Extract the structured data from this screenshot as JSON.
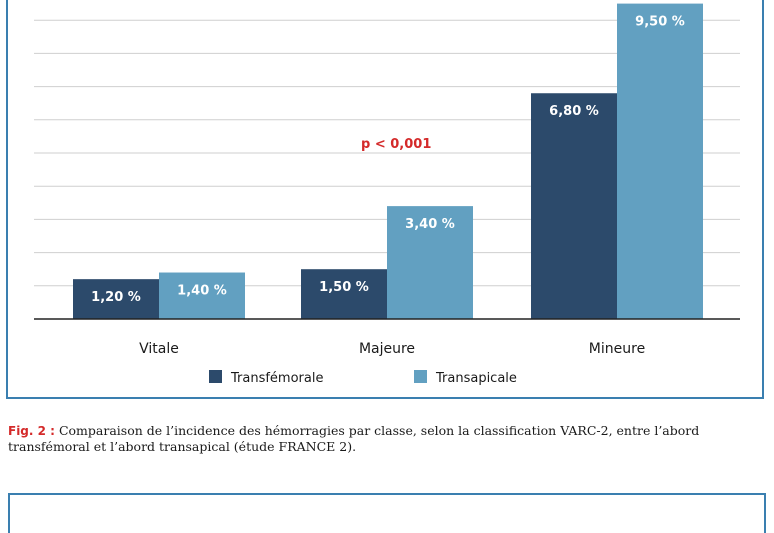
{
  "chart_data": {
    "type": "bar",
    "categories": [
      "Vitale",
      "Majeure",
      "Mineure"
    ],
    "series": [
      {
        "name": "Transfémorale",
        "values": [
          1.2,
          1.5,
          6.8
        ],
        "labels": [
          "1,20 %",
          "1,50 %",
          "6,80 %"
        ],
        "color": "#2c4a6b"
      },
      {
        "name": "Transapicale",
        "values": [
          1.4,
          3.4,
          9.5
        ],
        "labels": [
          "1,40 %",
          "3,40 %",
          "9,50 %"
        ],
        "color": "#62a0c1"
      }
    ],
    "ylim": [
      0,
      10
    ],
    "grid": true,
    "legend_position": "bottom",
    "annotation": "p < 0,001"
  },
  "caption": {
    "prefix": "Fig. 2 :",
    "text": "Comparaison de l’incidence des hémorragies par classe, selon la classification VARC-2, entre l’abord transfémoral et l’abord transapical (étude FRANCE 2)."
  },
  "colors": {
    "frame": "#3a7fb0",
    "annotation": "#d42a2a",
    "grid": "#cfcfcf"
  }
}
